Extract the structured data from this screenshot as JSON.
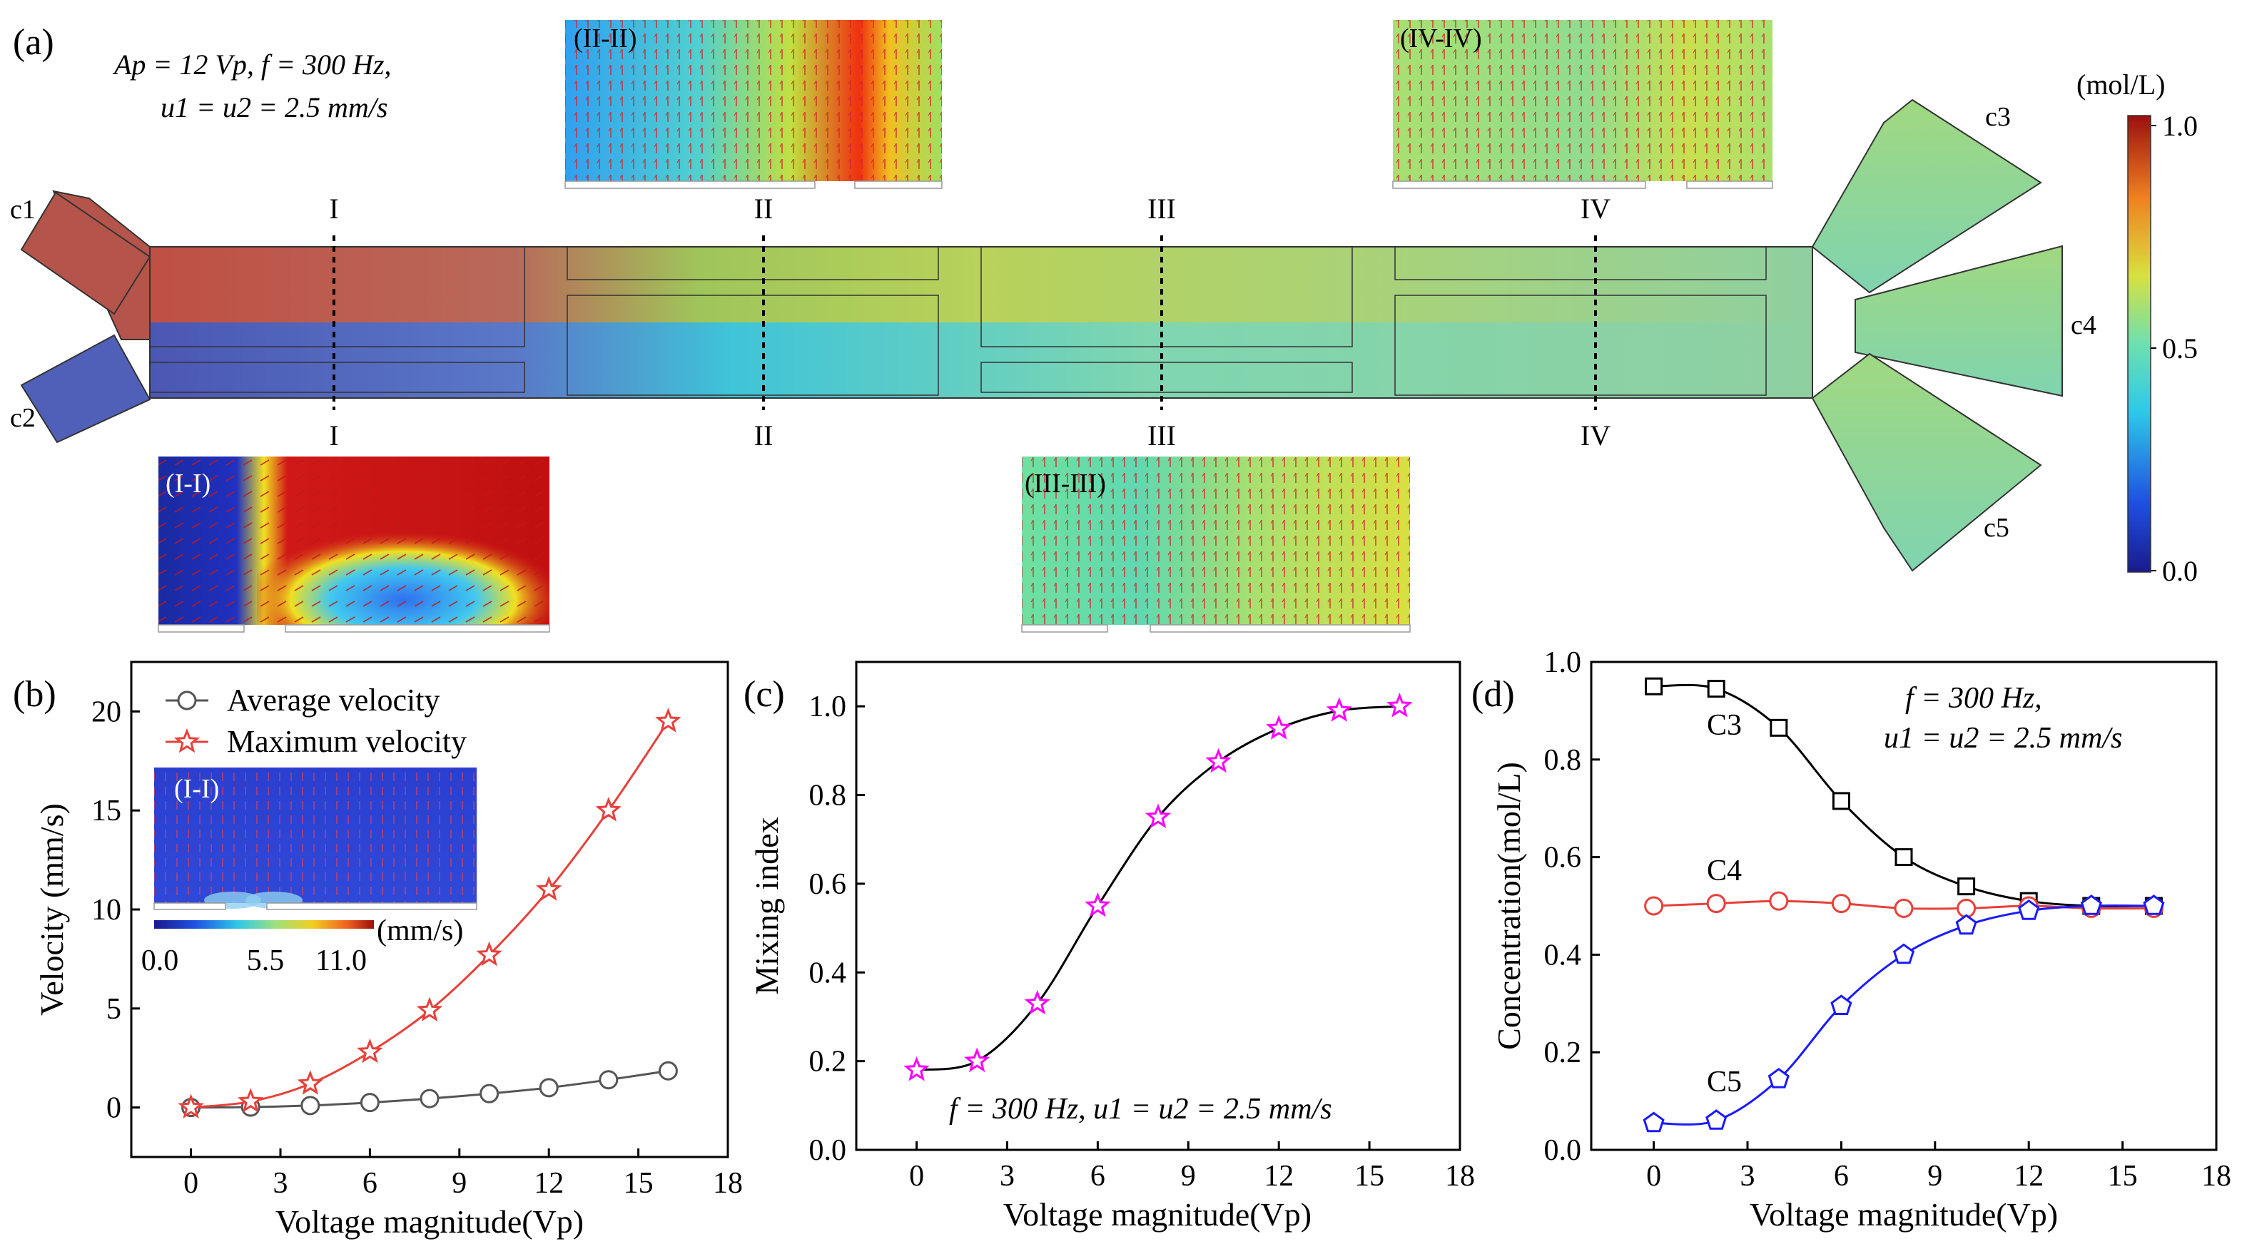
{
  "colors": {
    "avg": "#555555",
    "max": "#e8403a",
    "mix": "#ff00ff",
    "c3": "#000000",
    "c4": "#e8403a",
    "c5": "#1a1aff",
    "vector": "#d0232a"
  },
  "panel_a": {
    "label": "(a)",
    "params_line1": "Ap = 12 Vp, f = 300 Hz,",
    "params_line2": "u1 = u2 = 2.5 mm/s",
    "inlets": [
      "c1",
      "c2"
    ],
    "outlets": [
      "c3",
      "c4",
      "c5"
    ],
    "section_labels": [
      "I",
      "II",
      "III",
      "IV"
    ],
    "insets": [
      "(I-I)",
      "(II-II)",
      "(III-III)",
      "(IV-IV)"
    ],
    "colorbar": {
      "unit": "(mol/L)",
      "ticks": [
        "1.0",
        "0.5",
        "0.0"
      ]
    }
  },
  "chart_data": [
    {
      "type": "line",
      "panel": "(b)",
      "xlabel": "Voltage magnitude(Vp)",
      "ylabel": "Velocity (mm/s)",
      "xlim": [
        -2,
        18
      ],
      "ylim": [
        -2.5,
        22.5
      ],
      "xticks": [
        0,
        3,
        6,
        9,
        12,
        15,
        18
      ],
      "yticks": [
        0,
        5,
        10,
        15,
        20
      ],
      "x": [
        0,
        2,
        4,
        6,
        8,
        10,
        12,
        14,
        16
      ],
      "series": [
        {
          "name": "Average velocity",
          "marker": "circle",
          "values": [
            0,
            0.02,
            0.1,
            0.25,
            0.45,
            0.7,
            1.0,
            1.4,
            1.85
          ]
        },
        {
          "name": "Maximum velocity",
          "marker": "star",
          "values": [
            0,
            0.3,
            1.2,
            2.8,
            4.9,
            7.7,
            11.0,
            15.0,
            19.5
          ]
        }
      ],
      "inset": {
        "title": "(I-I)",
        "unit": "(mm/s)",
        "ticks": [
          "0.0",
          "5.5",
          "11.0"
        ]
      }
    },
    {
      "type": "line",
      "panel": "(c)",
      "xlabel": "Voltage magnitude(Vp)",
      "ylabel": "Mixing index",
      "xlim": [
        -2,
        18
      ],
      "ylim": [
        0.0,
        1.1
      ],
      "xticks": [
        0,
        3,
        6,
        9,
        12,
        15,
        18
      ],
      "yticks": [
        0.0,
        0.2,
        0.4,
        0.6,
        0.8,
        1.0
      ],
      "x": [
        0,
        2,
        4,
        6,
        8,
        10,
        12,
        14,
        16
      ],
      "series": [
        {
          "name": "Mixing index",
          "marker": "star",
          "values": [
            0.18,
            0.2,
            0.33,
            0.55,
            0.75,
            0.875,
            0.95,
            0.99,
            1.0
          ]
        }
      ],
      "annotation": "f = 300 Hz, u1 = u2 = 2.5 mm/s"
    },
    {
      "type": "line",
      "panel": "(d)",
      "xlabel": "Voltage magnitude(Vp)",
      "ylabel": "Concentration(mol/L)",
      "xlim": [
        -2,
        18
      ],
      "ylim": [
        0.0,
        1.0
      ],
      "xticks": [
        0,
        3,
        6,
        9,
        12,
        15,
        18
      ],
      "yticks": [
        0.0,
        0.2,
        0.4,
        0.6,
        0.8,
        1.0
      ],
      "x": [
        0,
        2,
        4,
        6,
        8,
        10,
        12,
        14,
        16
      ],
      "series": [
        {
          "name": "C3",
          "marker": "square",
          "values": [
            0.95,
            0.945,
            0.865,
            0.715,
            0.6,
            0.54,
            0.51,
            0.5,
            0.5
          ]
        },
        {
          "name": "C4",
          "marker": "circle",
          "values": [
            0.5,
            0.505,
            0.51,
            0.505,
            0.495,
            0.495,
            0.5,
            0.495,
            0.495
          ]
        },
        {
          "name": "C5",
          "marker": "pentagon",
          "values": [
            0.055,
            0.06,
            0.145,
            0.295,
            0.4,
            0.46,
            0.49,
            0.5,
            0.5
          ]
        }
      ],
      "annotation_line1": "f = 300 Hz,",
      "annotation_line2": "u1 = u2 = 2.5 mm/s"
    }
  ]
}
